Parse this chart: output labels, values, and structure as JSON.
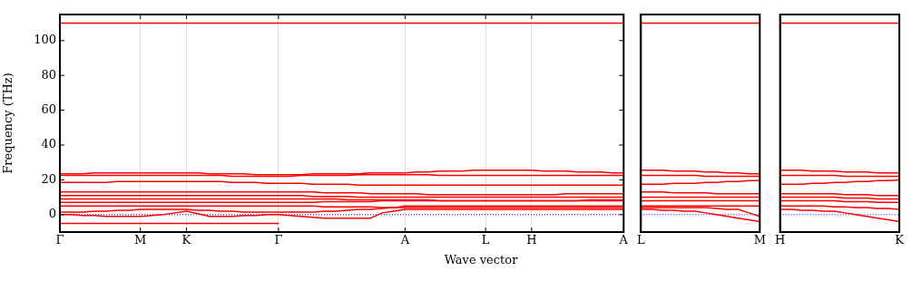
{
  "chart_data": [
    {
      "type": "line",
      "xlabel": "Wave vector",
      "ylabel": "Frequency (THz)",
      "ylim": [
        -10,
        115
      ],
      "categories": [
        "Γ",
        null,
        null,
        null,
        null,
        null,
        null,
        "M",
        null,
        null,
        null,
        "K",
        null,
        null,
        null,
        null,
        null,
        null,
        null,
        "Γ",
        null,
        null,
        null,
        null,
        null,
        null,
        null,
        null,
        null,
        null,
        "A",
        null,
        null,
        null,
        null,
        null,
        null,
        "L",
        null,
        null,
        null,
        "H",
        null,
        null,
        null,
        null,
        null,
        null,
        null,
        "A"
      ],
      "yticks": [
        0,
        20,
        40,
        60,
        80,
        100
      ],
      "grid": "x",
      "ref_lines": [
        {
          "axis": "y",
          "value": 0,
          "color": "#0000ff",
          "line_style": "dotted"
        }
      ],
      "series": [
        {
          "color": "#ff0000",
          "values": [
            110,
            110,
            110,
            110,
            110,
            110,
            110,
            110,
            110,
            110,
            110,
            110,
            110,
            110,
            110,
            110,
            110,
            110,
            110,
            110,
            110,
            110,
            110,
            110,
            110,
            110,
            110,
            110,
            110,
            110,
            110,
            110,
            110,
            110,
            110,
            110,
            110,
            110,
            110,
            110,
            110,
            110,
            110,
            110,
            110,
            110,
            110,
            110,
            110,
            110
          ]
        },
        {
          "color": "#ff0000",
          "values": [
            23.5,
            23.5,
            23.5,
            24,
            24,
            24,
            24,
            24,
            24,
            24,
            24,
            24,
            24,
            23.5,
            23.5,
            23.5,
            23.5,
            23,
            23,
            23,
            23,
            23,
            23.5,
            23.5,
            23.5,
            23.5,
            23.5,
            24,
            24,
            24,
            24,
            24.5,
            24.5,
            25,
            25,
            25,
            25.5,
            25.5,
            25.5,
            25.5,
            25.5,
            25.5,
            25,
            25,
            25,
            24.5,
            24.5,
            24.5,
            24,
            24
          ]
        },
        {
          "color": "#ff0000",
          "values": [
            22.5,
            22.5,
            22.5,
            22.5,
            22.5,
            22.5,
            22.5,
            22.5,
            22.5,
            22.5,
            22.5,
            22.5,
            22.5,
            22.5,
            22.5,
            22,
            22,
            22,
            22,
            22,
            22,
            22.5,
            22.5,
            22.5,
            22.5,
            22.5,
            23,
            23,
            23,
            23,
            23,
            23,
            23,
            22.5,
            22.5,
            22.5,
            22.5,
            22.5,
            22.5,
            22.5,
            22.5,
            22.5,
            22.5,
            22.5,
            22.5,
            22.5,
            22.5,
            22.5,
            22.5,
            22.5
          ]
        },
        {
          "color": "#ff0000",
          "values": [
            18.5,
            18.5,
            18.5,
            18.5,
            18.5,
            19,
            19,
            19,
            19,
            19,
            19,
            19,
            19,
            19,
            19,
            18.5,
            18.5,
            18.5,
            18,
            18,
            18,
            18,
            17.5,
            17.5,
            17.5,
            17.5,
            17,
            17,
            17,
            17,
            17,
            17,
            17,
            17,
            17,
            17,
            17,
            17,
            17,
            17,
            17,
            17,
            17,
            17,
            17,
            17,
            17,
            17,
            17,
            17
          ]
        },
        {
          "color": "#ff0000",
          "values": [
            13,
            13,
            13,
            13,
            13,
            13,
            13,
            13,
            13,
            13,
            13,
            13,
            13,
            13,
            13,
            13,
            13,
            13,
            13,
            13,
            13,
            13,
            13,
            12.5,
            12.5,
            12.5,
            12.5,
            12,
            12,
            12,
            12,
            12,
            11.5,
            11.5,
            11.5,
            11.5,
            11.5,
            11.5,
            11.5,
            11.5,
            11.5,
            11.5,
            11.5,
            11.5,
            12,
            12,
            12,
            12,
            12,
            12
          ]
        },
        {
          "color": "#ff0000",
          "values": [
            11,
            11,
            11,
            11,
            11,
            11,
            11,
            11,
            11,
            11,
            11,
            11,
            11,
            11,
            11,
            11,
            11,
            11,
            11,
            11,
            11,
            11,
            10.5,
            10.5,
            10.5,
            10.5,
            10,
            10,
            10,
            10,
            10,
            10,
            10,
            10,
            10,
            10,
            10,
            10,
            10,
            10,
            10,
            10,
            10,
            10,
            10,
            10,
            10,
            10,
            10,
            10
          ]
        },
        {
          "color": "#ff0000",
          "values": [
            9,
            9,
            9,
            9,
            9,
            9,
            9,
            9,
            9,
            9,
            9,
            9,
            9,
            9,
            9,
            9,
            9,
            9,
            9,
            9,
            9,
            9,
            9,
            9,
            9,
            8.5,
            8.5,
            8.5,
            8.5,
            8.5,
            8.5,
            8.5,
            8.5,
            8,
            8,
            8,
            8,
            8,
            8,
            8,
            8,
            8,
            8,
            8,
            8,
            8,
            8.5,
            8.5,
            8.5,
            8.5
          ]
        },
        {
          "color": "#ff0000",
          "values": [
            7,
            7,
            7,
            7,
            7,
            7,
            7,
            7,
            7,
            7,
            7,
            7,
            7,
            7,
            7,
            7,
            7,
            7,
            7,
            7,
            7,
            7,
            7,
            7.5,
            7.5,
            7.5,
            7.5,
            7.5,
            8,
            8,
            8,
            8,
            8,
            8,
            8,
            8,
            8,
            8,
            8,
            8,
            8,
            8,
            8,
            8,
            8,
            8,
            8,
            8,
            8,
            8
          ]
        },
        {
          "color": "#ff0000",
          "values": [
            5,
            5,
            5,
            5,
            5,
            5,
            5,
            5,
            5,
            5,
            5,
            5,
            5,
            5,
            5,
            5,
            5,
            5,
            5,
            5,
            5,
            5,
            5,
            4.5,
            4.5,
            4.5,
            4.5,
            4.5,
            4,
            4,
            4,
            4,
            4,
            4,
            4,
            4,
            4,
            4,
            4,
            4,
            4,
            4,
            4,
            4,
            4,
            4,
            4,
            4,
            4,
            4
          ]
        },
        {
          "color": "#ff0000",
          "values": [
            1.5,
            1.5,
            1.5,
            2,
            2,
            2.5,
            2.5,
            3,
            3,
            3,
            3,
            3,
            2.5,
            2.5,
            2,
            2,
            1.5,
            1.5,
            1.5,
            1.5,
            1.5,
            1.5,
            1.5,
            2,
            2,
            2.5,
            3,
            3,
            3.5,
            4,
            5,
            5,
            5,
            5,
            5,
            5,
            5,
            5,
            5,
            5,
            5,
            5,
            5,
            5,
            5,
            5,
            5,
            5,
            5,
            5
          ]
        },
        {
          "color": "#ff0000",
          "values": [
            0,
            0,
            -0.5,
            -0.5,
            -1,
            -1,
            -1,
            -1,
            -0.5,
            0,
            1,
            2,
            0.5,
            -1,
            -1,
            -1,
            -0.5,
            -0.5,
            0,
            0,
            -0.5,
            -1,
            -1.5,
            -2,
            -2,
            -2,
            -2,
            -2,
            1,
            2,
            3,
            3,
            3,
            3,
            3,
            3,
            3,
            3,
            3,
            3,
            3,
            3,
            3,
            3,
            3,
            3,
            3,
            3,
            3,
            3
          ]
        },
        {
          "color": "#ff0000",
          "values": [
            -5,
            -5,
            -5,
            -5,
            -5,
            -5,
            -5,
            -5,
            -5,
            -5,
            -5,
            -5,
            -5,
            -5,
            -5,
            -5,
            -5,
            -5,
            -5,
            -5,
            null,
            null,
            null,
            null,
            null,
            null,
            null,
            null,
            null,
            null,
            null,
            null,
            null,
            null,
            null,
            null,
            null,
            null,
            null,
            null,
            null,
            null,
            null,
            null,
            null,
            null,
            null,
            null,
            null,
            null
          ]
        }
      ]
    },
    {
      "type": "line",
      "ylim": [
        -10,
        115
      ],
      "tick_labels": "x",
      "categories": [
        "L",
        null,
        null,
        null,
        null,
        null,
        null,
        null,
        null,
        null,
        null,
        "M"
      ],
      "ref_lines": [
        {
          "axis": "y",
          "value": 0,
          "color": "#0000ff",
          "line_style": "dotted"
        }
      ],
      "series": [
        {
          "color": "#ff0000",
          "values": [
            110,
            110,
            110,
            110,
            110,
            110,
            110,
            110,
            110,
            110,
            110,
            110
          ]
        },
        {
          "color": "#ff0000",
          "values": [
            25.5,
            25.5,
            25.5,
            25,
            25,
            25,
            24.5,
            24.5,
            24,
            24,
            23.5,
            23.5
          ]
        },
        {
          "color": "#ff0000",
          "values": [
            22.5,
            22.5,
            22.5,
            22.5,
            22.5,
            22.5,
            22,
            22,
            22,
            22,
            22,
            22
          ]
        },
        {
          "color": "#ff0000",
          "values": [
            17.5,
            17.5,
            17.5,
            18,
            18,
            18,
            18.5,
            18.5,
            19,
            19,
            19.5,
            19.5
          ]
        },
        {
          "color": "#ff0000",
          "values": [
            13,
            13,
            13,
            12.5,
            12.5,
            12.5,
            12.5,
            12,
            12,
            12,
            12,
            12
          ]
        },
        {
          "color": "#ff0000",
          "values": [
            10,
            10,
            10,
            10,
            10,
            10,
            10,
            10,
            10,
            10,
            10,
            10
          ]
        },
        {
          "color": "#ff0000",
          "values": [
            8,
            8,
            8,
            8,
            8,
            8,
            8,
            8,
            8,
            8,
            8,
            8
          ]
        },
        {
          "color": "#ff0000",
          "values": [
            5,
            5,
            5,
            5,
            5,
            5,
            5,
            5,
            5,
            5,
            5,
            5
          ]
        },
        {
          "color": "#ff0000",
          "values": [
            3,
            3,
            2.5,
            2.5,
            2,
            2,
            1,
            0,
            -1,
            -2,
            -3,
            -4
          ]
        },
        {
          "color": "#ff0000",
          "values": [
            4,
            4,
            4,
            4,
            4,
            4,
            4,
            3.5,
            3,
            3,
            1,
            -1
          ]
        }
      ]
    },
    {
      "type": "line",
      "ylim": [
        -10,
        115
      ],
      "tick_labels": "x",
      "categories": [
        "H",
        null,
        null,
        null,
        null,
        null,
        null,
        null,
        null,
        null,
        null,
        "K"
      ],
      "ref_lines": [
        {
          "axis": "y",
          "value": 0,
          "color": "#0000ff",
          "line_style": "dotted"
        }
      ],
      "series": [
        {
          "color": "#ff0000",
          "values": [
            110,
            110,
            110,
            110,
            110,
            110,
            110,
            110,
            110,
            110,
            110,
            110
          ]
        },
        {
          "color": "#ff0000",
          "values": [
            25.5,
            25.5,
            25.5,
            25,
            25,
            25,
            24.5,
            24.5,
            24.5,
            24,
            24,
            24
          ]
        },
        {
          "color": "#ff0000",
          "values": [
            22.5,
            22.5,
            22.5,
            22.5,
            22.5,
            22.5,
            22,
            22,
            22,
            22,
            22,
            22
          ]
        },
        {
          "color": "#ff0000",
          "values": [
            17.5,
            17.5,
            17.5,
            18,
            18,
            18.5,
            18.5,
            19,
            19,
            19.5,
            19.5,
            20
          ]
        },
        {
          "color": "#ff0000",
          "values": [
            12,
            12,
            12,
            12,
            12,
            12,
            11.5,
            11.5,
            11.5,
            11,
            11,
            11
          ]
        },
        {
          "color": "#ff0000",
          "values": [
            10,
            10,
            10,
            10,
            10,
            10,
            9.5,
            9.5,
            9.5,
            9,
            9,
            9
          ]
        },
        {
          "color": "#ff0000",
          "values": [
            8,
            8,
            8,
            8,
            8,
            8,
            7.5,
            7.5,
            7.5,
            7,
            7,
            7
          ]
        },
        {
          "color": "#ff0000",
          "values": [
            5,
            5,
            5,
            5,
            5,
            4.5,
            4.5,
            4,
            4,
            3.5,
            3.5,
            3
          ]
        },
        {
          "color": "#ff0000",
          "values": [
            3,
            3,
            2.5,
            2.5,
            2,
            2,
            1,
            0,
            -1,
            -2,
            -3,
            -4
          ]
        }
      ]
    }
  ]
}
